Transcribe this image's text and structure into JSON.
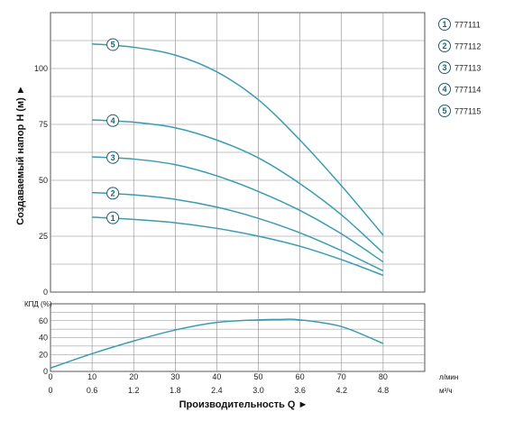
{
  "chart_data": [
    {
      "type": "line",
      "ylabel": "Создаваемый напор H (м) ►",
      "xlim": [
        0,
        90
      ],
      "ylim": [
        0,
        125
      ],
      "y_ticks": [
        "0",
        "25",
        "50",
        "75",
        "100"
      ],
      "grid": true,
      "legend_position": "right",
      "series_color": "#3a9cb0",
      "series": [
        {
          "marker": "1",
          "name": "777111",
          "x": [
            10,
            20,
            30,
            40,
            50,
            60,
            70,
            80
          ],
          "y": [
            33.5,
            32.5,
            31,
            28.5,
            25,
            20.5,
            14.5,
            7.5
          ]
        },
        {
          "marker": "2",
          "name": "777112",
          "x": [
            10,
            20,
            30,
            40,
            50,
            60,
            70,
            80
          ],
          "y": [
            44.5,
            43.5,
            41.5,
            38,
            33,
            26.5,
            18.5,
            9.5
          ]
        },
        {
          "marker": "3",
          "name": "777113",
          "x": [
            10,
            20,
            30,
            40,
            50,
            60,
            70,
            80
          ],
          "y": [
            60.5,
            59.5,
            57,
            52,
            45,
            36.5,
            26,
            13.5
          ]
        },
        {
          "marker": "4",
          "name": "777114",
          "x": [
            10,
            20,
            30,
            40,
            50,
            60,
            70,
            80
          ],
          "y": [
            77,
            76,
            73.5,
            68,
            60,
            48.5,
            34.5,
            17.5
          ]
        },
        {
          "marker": "5",
          "name": "777115",
          "x": [
            10,
            20,
            30,
            40,
            50,
            60,
            70,
            80
          ],
          "y": [
            111,
            109.5,
            106,
            98.5,
            86,
            68,
            47.5,
            25.5
          ]
        }
      ]
    },
    {
      "type": "line",
      "ylabel": "КПД (%)",
      "xlabel": "Производительность Q ►",
      "xlim": [
        0,
        90
      ],
      "ylim": [
        0,
        80
      ],
      "y_ticks": [
        "0",
        "20",
        "40",
        "60"
      ],
      "x_ticks_lmin": [
        "0",
        "10",
        "20",
        "30",
        "40",
        "50",
        "60",
        "70",
        "80"
      ],
      "x_ticks_m3h": [
        "0",
        "0.6",
        "1.2",
        "1.8",
        "2.4",
        "3.0",
        "3.6",
        "4.2",
        "4.8"
      ],
      "x_unit_lmin": "л/мин",
      "x_unit_m3h": "м³/ч",
      "grid": true,
      "series_color": "#3a9cb0",
      "series": [
        {
          "x": [
            0,
            10,
            20,
            30,
            40,
            50,
            55,
            60,
            70,
            80
          ],
          "y": [
            4,
            21,
            36,
            49,
            58,
            61,
            61.5,
            61,
            53,
            33
          ]
        }
      ]
    }
  ]
}
